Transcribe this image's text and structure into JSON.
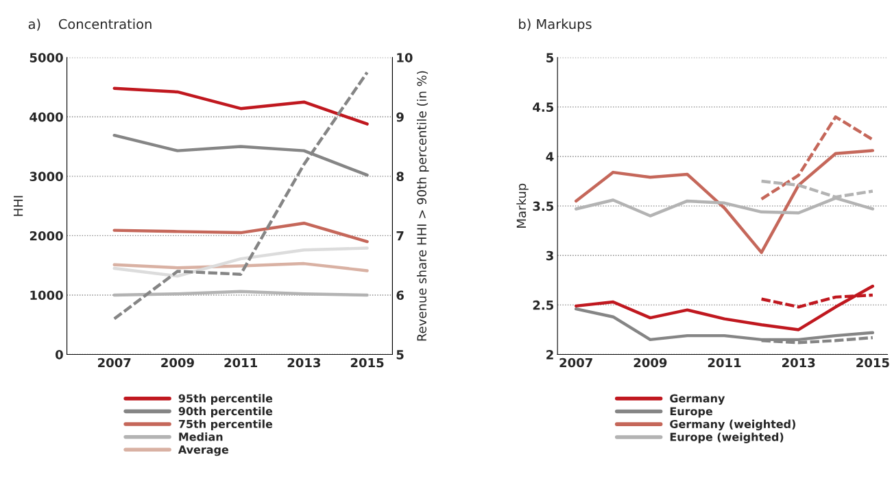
{
  "chart_data": [
    {
      "type": "line",
      "title": "a)    Concentration",
      "ylabel": "HHI",
      "y2label": "Revenue share HHI > 90th percentile (in %)",
      "x": [
        2007,
        2009,
        2011,
        2013,
        2015
      ],
      "xlim": [
        2005.5,
        2015.8
      ],
      "xticks": [
        2007,
        2009,
        2011,
        2013,
        2015
      ],
      "ylim": [
        0,
        5000
      ],
      "yticks": [
        0,
        1000,
        2000,
        3000,
        4000,
        5000
      ],
      "y2lim": [
        5,
        10
      ],
      "y2ticks": [
        5,
        6,
        7,
        8,
        9,
        10
      ],
      "grid": "y",
      "legend": "bottom",
      "line_style": "solid",
      "series": [
        {
          "name": "95th percentile",
          "color": "#c0181f",
          "values": [
            4480,
            4420,
            4140,
            4250,
            3880
          ]
        },
        {
          "name": "90th percentile",
          "color": "#858585",
          "values": [
            3690,
            3430,
            3500,
            3430,
            3020
          ]
        },
        {
          "name": "75th percentile",
          "color": "#c5675a",
          "values": [
            2090,
            2070,
            2050,
            2210,
            1900
          ]
        },
        {
          "name": "Median",
          "color": "#b3b3b3",
          "values": [
            1000,
            1020,
            1060,
            1020,
            1000
          ]
        },
        {
          "name": "Average",
          "color": "#d9b1a3",
          "values": [
            1510,
            1460,
            1490,
            1530,
            1410
          ]
        },
        {
          "color": "#dcdcdc",
          "values": [
            1450,
            1320,
            1610,
            1760,
            1790
          ]
        },
        {
          "color": "#858585",
          "axis": "y2",
          "line_style": "dashed",
          "values": [
            5.6,
            6.4,
            6.35,
            8.2,
            9.75
          ]
        }
      ]
    },
    {
      "type": "line",
      "title": "b) Markups",
      "ylabel": "Markup",
      "x": [
        2007,
        2008,
        2009,
        2010,
        2011,
        2012,
        2013,
        2014,
        2015
      ],
      "xlim": [
        2006.5,
        2015.4
      ],
      "xticks": [
        2007,
        2009,
        2011,
        2013,
        2015
      ],
      "ylim": [
        2,
        5
      ],
      "yticks": [
        2,
        2.5,
        3,
        3.5,
        4,
        4.5,
        5
      ],
      "grid": "y",
      "legend": "bottom",
      "line_style": "solid",
      "series": [
        {
          "name": "Germany",
          "color": "#c0181f",
          "values": [
            2.49,
            2.53,
            2.37,
            2.45,
            2.36,
            2.3,
            2.25,
            2.48,
            2.69
          ]
        },
        {
          "name": "Europe",
          "color": "#858585",
          "values": [
            2.46,
            2.38,
            2.15,
            2.19,
            2.19,
            2.15,
            2.15,
            2.19,
            2.22
          ]
        },
        {
          "name": "Germany (weighted)",
          "color": "#c5675a",
          "values": [
            3.55,
            3.84,
            3.79,
            3.82,
            3.48,
            3.03,
            3.71,
            4.03,
            4.06
          ]
        },
        {
          "name": "Europe (weighted)",
          "color": "#b3b3b3",
          "values": [
            3.47,
            3.56,
            3.4,
            3.55,
            3.53,
            3.44,
            3.43,
            3.58,
            3.47
          ]
        },
        {
          "color": "#c0181f",
          "line_style": "dashed",
          "values": [
            null,
            null,
            null,
            null,
            null,
            2.56,
            2.48,
            2.58,
            2.6
          ]
        },
        {
          "color": "#858585",
          "line_style": "dashed",
          "values": [
            null,
            null,
            null,
            null,
            null,
            2.14,
            2.12,
            2.14,
            2.17
          ]
        },
        {
          "color": "#c5675a",
          "line_style": "dashed",
          "values": [
            null,
            null,
            null,
            null,
            null,
            3.57,
            3.81,
            4.4,
            4.17
          ]
        },
        {
          "color": "#b3b3b3",
          "line_style": "dashed",
          "values": [
            null,
            null,
            null,
            null,
            null,
            3.75,
            3.71,
            3.59,
            3.65
          ]
        }
      ]
    }
  ]
}
